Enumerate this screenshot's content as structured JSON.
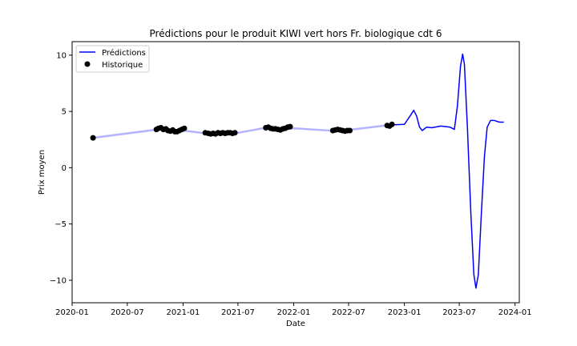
{
  "chart_data": {
    "type": "line",
    "title": "Prédictions pour le produit KIWI vert hors Fr. biologique cdt 6",
    "xlabel": "Date",
    "ylabel": "Prix moyen",
    "x_axis_type": "date",
    "xlim": [
      "2020-01-01",
      "2024-01-15"
    ],
    "ylim": [
      -12,
      11.2
    ],
    "x_ticks": [
      "2020-01",
      "2020-07",
      "2021-01",
      "2021-07",
      "2022-01",
      "2022-07",
      "2023-01",
      "2023-07",
      "2024-01"
    ],
    "y_ticks": [
      10,
      5,
      0,
      -5,
      -10
    ],
    "y_tick_labels": [
      "10",
      "5",
      "0",
      "−5",
      "−10"
    ],
    "grid": false,
    "legend_position": "top-left",
    "legend": [
      "Prédictions",
      "Historique"
    ],
    "colors": {
      "predictions": "#0000ff",
      "predictions_faded": "#b3b3ff",
      "historique": "#000000"
    },
    "series": [
      {
        "name": "Prédictions",
        "style": "line",
        "points": [
          [
            "2020-03-10",
            2.65
          ],
          [
            "2020-10-10",
            3.4
          ],
          [
            "2020-11-01",
            3.3
          ],
          [
            "2020-12-01",
            3.2
          ],
          [
            "2021-01-01",
            3.3
          ],
          [
            "2021-03-01",
            3.1
          ],
          [
            "2021-05-01",
            3.0
          ],
          [
            "2021-07-01",
            3.1
          ],
          [
            "2021-10-01",
            3.55
          ],
          [
            "2021-12-01",
            3.4
          ],
          [
            "2022-01-01",
            3.5
          ],
          [
            "2022-05-01",
            3.3
          ],
          [
            "2022-07-01",
            3.35
          ],
          [
            "2022-11-15",
            3.8
          ],
          [
            "2023-01-01",
            3.85
          ],
          [
            "2023-01-20",
            4.6
          ],
          [
            "2023-02-01",
            5.1
          ],
          [
            "2023-02-10",
            4.6
          ],
          [
            "2023-02-20",
            3.6
          ],
          [
            "2023-03-01",
            3.3
          ],
          [
            "2023-03-15",
            3.6
          ],
          [
            "2023-04-01",
            3.55
          ],
          [
            "2023-05-01",
            3.7
          ],
          [
            "2023-06-01",
            3.6
          ],
          [
            "2023-06-15",
            3.4
          ],
          [
            "2023-06-25",
            5.5
          ],
          [
            "2023-07-05",
            9.0
          ],
          [
            "2023-07-12",
            10.1
          ],
          [
            "2023-07-18",
            9.2
          ],
          [
            "2023-07-28",
            3.5
          ],
          [
            "2023-08-08",
            -4.0
          ],
          [
            "2023-08-18",
            -9.5
          ],
          [
            "2023-08-25",
            -10.7
          ],
          [
            "2023-09-02",
            -9.5
          ],
          [
            "2023-09-12",
            -4.0
          ],
          [
            "2023-09-22",
            1.0
          ],
          [
            "2023-10-01",
            3.6
          ],
          [
            "2023-10-12",
            4.2
          ],
          [
            "2023-10-25",
            4.2
          ],
          [
            "2023-11-10",
            4.05
          ],
          [
            "2023-11-25",
            4.05
          ]
        ]
      },
      {
        "name": "Historique",
        "style": "scatter",
        "points": [
          [
            "2020-03-10",
            2.65
          ],
          [
            "2020-10-05",
            3.4
          ],
          [
            "2020-10-12",
            3.5
          ],
          [
            "2020-10-20",
            3.55
          ],
          [
            "2020-10-28",
            3.4
          ],
          [
            "2020-11-05",
            3.45
          ],
          [
            "2020-11-12",
            3.3
          ],
          [
            "2020-11-20",
            3.25
          ],
          [
            "2020-11-28",
            3.35
          ],
          [
            "2020-12-05",
            3.2
          ],
          [
            "2020-12-12",
            3.2
          ],
          [
            "2020-12-20",
            3.3
          ],
          [
            "2020-12-28",
            3.4
          ],
          [
            "2021-01-05",
            3.5
          ],
          [
            "2021-03-15",
            3.1
          ],
          [
            "2021-03-25",
            3.05
          ],
          [
            "2021-04-02",
            3.0
          ],
          [
            "2021-04-10",
            3.05
          ],
          [
            "2021-04-18",
            3.0
          ],
          [
            "2021-04-26",
            3.1
          ],
          [
            "2021-05-04",
            3.05
          ],
          [
            "2021-05-12",
            3.1
          ],
          [
            "2021-05-20",
            3.05
          ],
          [
            "2021-05-28",
            3.1
          ],
          [
            "2021-06-05",
            3.1
          ],
          [
            "2021-06-13",
            3.05
          ],
          [
            "2021-06-21",
            3.1
          ],
          [
            "2021-10-01",
            3.55
          ],
          [
            "2021-10-09",
            3.6
          ],
          [
            "2021-10-17",
            3.5
          ],
          [
            "2021-10-25",
            3.45
          ],
          [
            "2021-11-02",
            3.45
          ],
          [
            "2021-11-10",
            3.4
          ],
          [
            "2021-11-18",
            3.35
          ],
          [
            "2021-11-26",
            3.45
          ],
          [
            "2021-12-04",
            3.5
          ],
          [
            "2021-12-12",
            3.6
          ],
          [
            "2021-12-20",
            3.65
          ],
          [
            "2022-05-10",
            3.3
          ],
          [
            "2022-05-18",
            3.35
          ],
          [
            "2022-05-26",
            3.4
          ],
          [
            "2022-06-03",
            3.35
          ],
          [
            "2022-06-11",
            3.3
          ],
          [
            "2022-06-19",
            3.25
          ],
          [
            "2022-06-27",
            3.3
          ],
          [
            "2022-07-05",
            3.3
          ],
          [
            "2022-11-05",
            3.75
          ],
          [
            "2022-11-13",
            3.7
          ],
          [
            "2022-11-21",
            3.85
          ]
        ]
      }
    ]
  }
}
